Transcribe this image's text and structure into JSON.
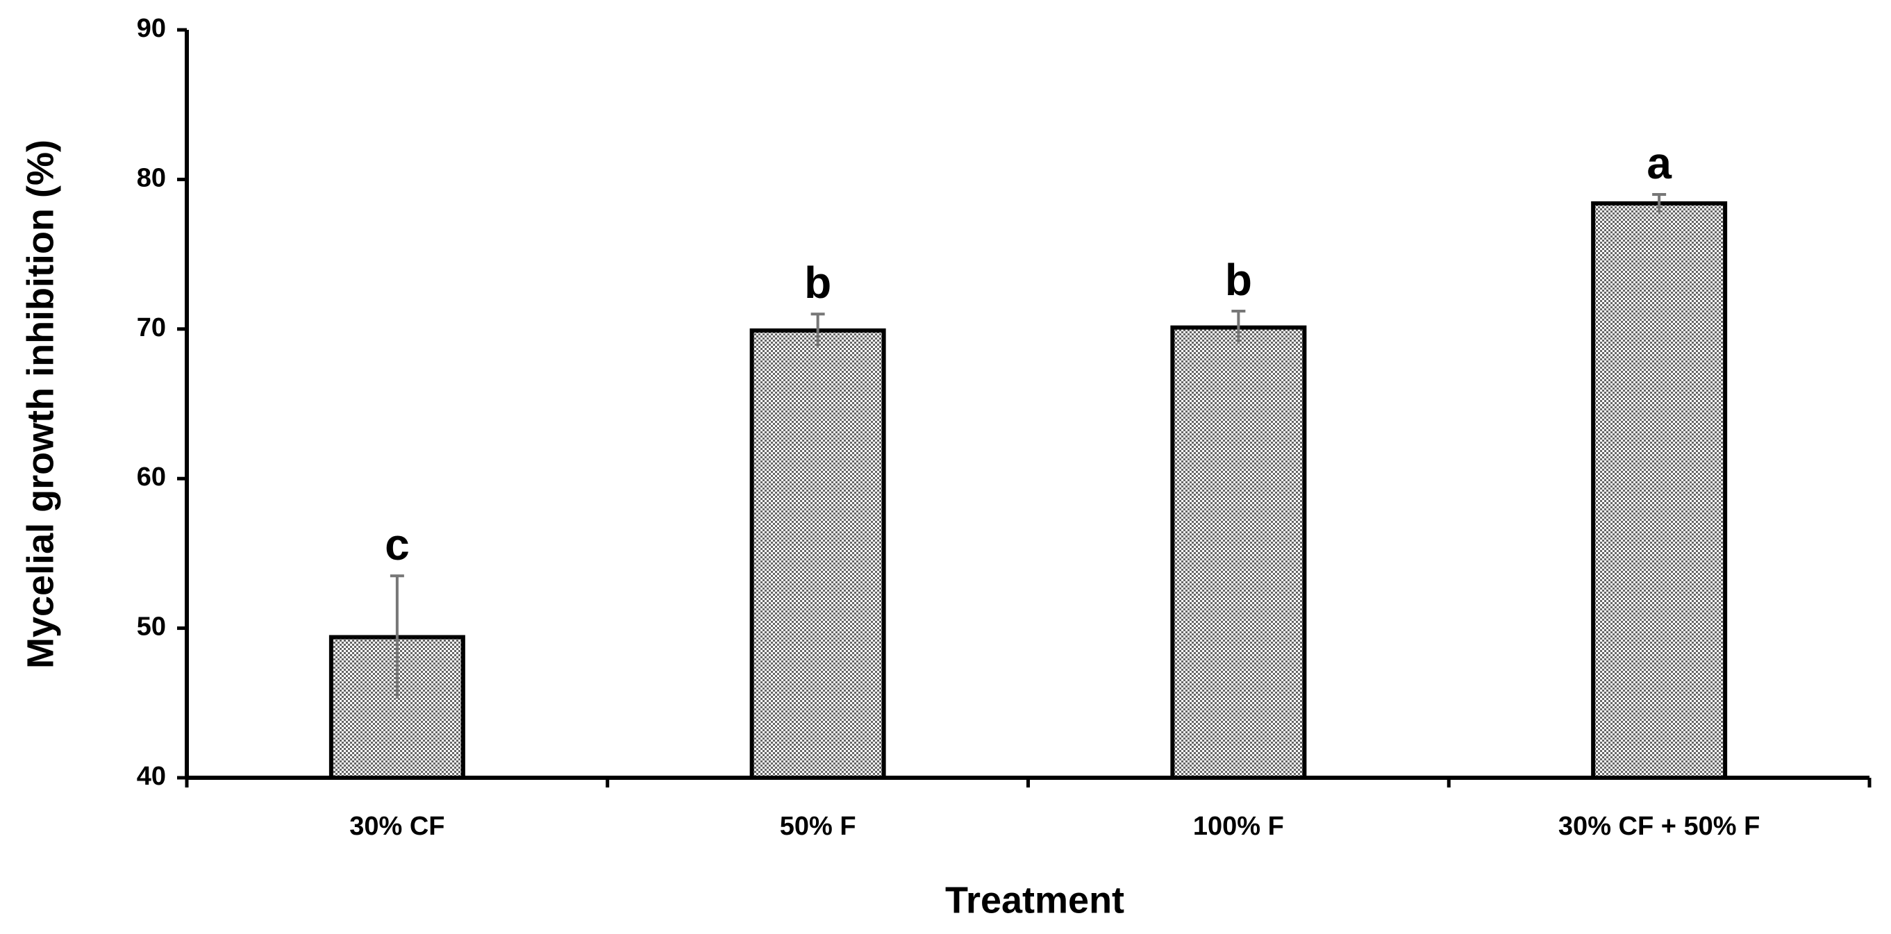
{
  "chart_data": {
    "type": "bar",
    "x_label": "Treatment",
    "y_label": "Mycelial growth inhibition (%)",
    "categories": [
      "30% CF",
      "50% F",
      "100% F",
      "30% CF + 50% F"
    ],
    "values": [
      49.4,
      69.9,
      70.1,
      78.4
    ],
    "errors": [
      4.1,
      1.1,
      1.1,
      0.6
    ],
    "annotations": [
      "c",
      "b",
      "b",
      "a"
    ],
    "color": "#666666",
    "ylim": [
      40,
      90
    ],
    "yticks": [
      40,
      50,
      60,
      70,
      80,
      90
    ],
    "grid": false
  }
}
